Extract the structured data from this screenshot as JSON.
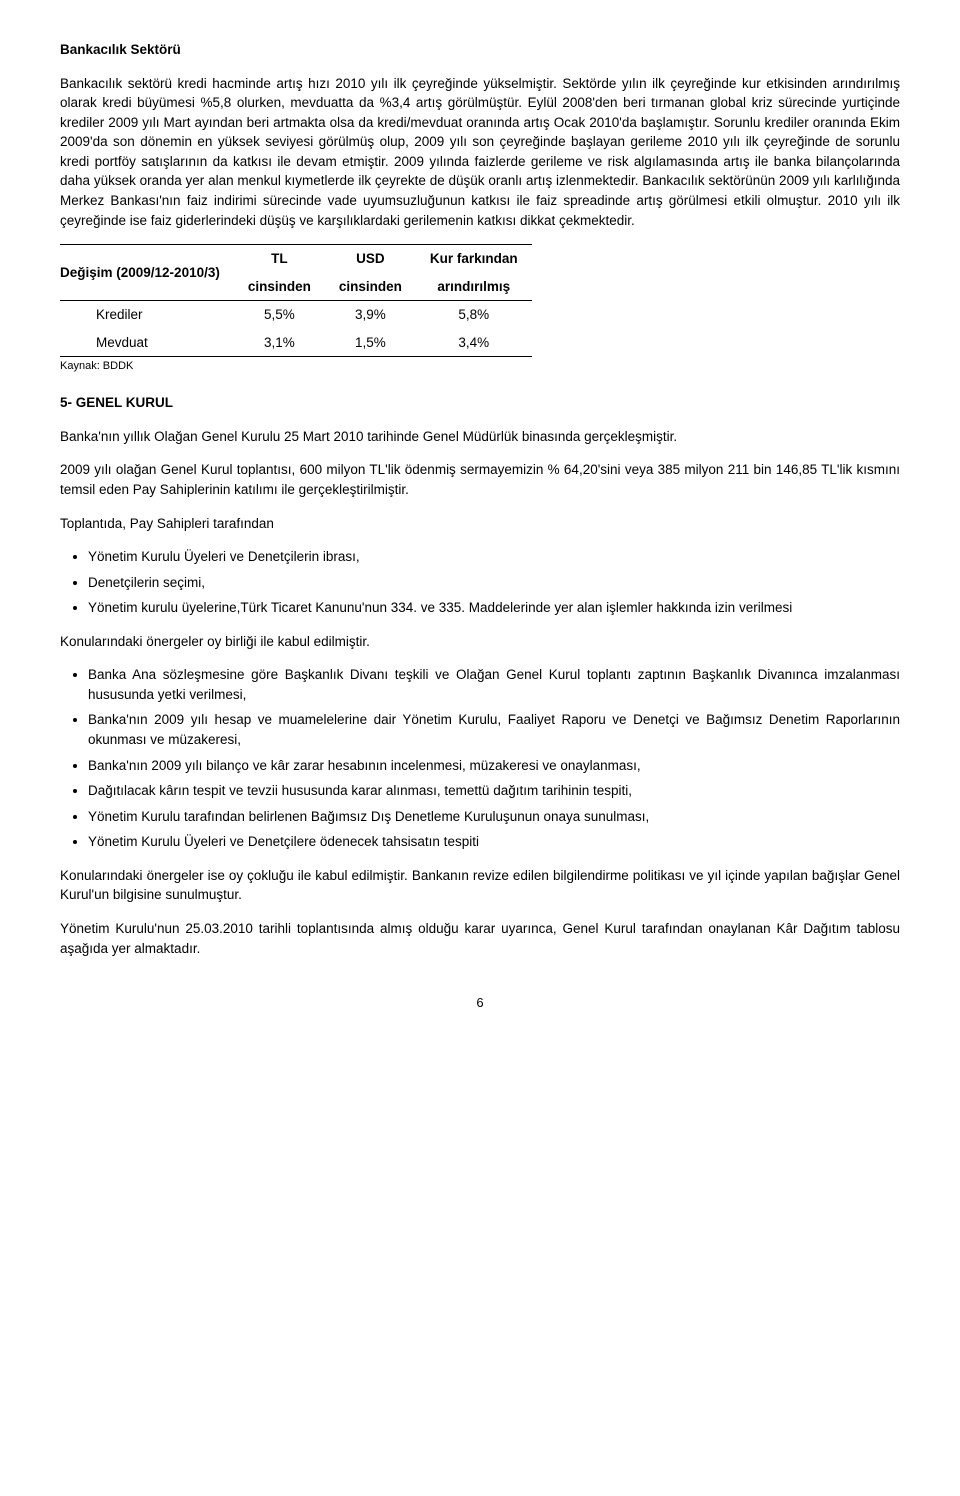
{
  "section1": {
    "title": "Bankacılık Sektörü",
    "p1": "Bankacılık sektörü kredi hacminde artış hızı 2010 yılı ilk çeyreğinde yükselmiştir. Sektörde yılın ilk çeyreğinde kur etkisinden arındırılmış olarak kredi büyümesi %5,8 olurken, mevduatta da %3,4 artış görülmüştür. Eylül 2008'den beri tırmanan global kriz sürecinde yurtiçinde krediler 2009 yılı Mart ayından beri artmakta olsa da kredi/mevduat oranında artış Ocak 2010'da başlamıştır. Sorunlu krediler oranında Ekim 2009'da son dönemin en yüksek seviyesi görülmüş olup, 2009 yılı son çeyreğinde başlayan gerileme 2010 yılı ilk çeyreğinde de sorunlu kredi portföy satışlarının da katkısı ile devam etmiştir. 2009 yılında faizlerde gerileme ve risk algılamasında artış ile banka bilançolarında daha yüksek oranda yer alan menkul kıymetlerde ilk çeyrekte de düşük oranlı artış izlenmektedir. Bankacılık sektörünün 2009 yılı karlılığında Merkez Bankası'nın faiz indirimi sürecinde vade uyumsuzluğunun katkısı ile faiz spreadinde artış görülmesi etkili olmuştur. 2010 yılı ilk çeyreğinde ise faiz giderlerindeki düşüş ve karşılıklardaki gerilemenin katkısı dikkat çekmektedir."
  },
  "table": {
    "header_label": "Değişim (2009/12-2010/3)",
    "col1_line1": "TL",
    "col1_line2": "cinsinden",
    "col2_line1": "USD",
    "col2_line2": "cinsinden",
    "col3_line1": "Kur farkından",
    "col3_line2": "arındırılmış",
    "rows": [
      {
        "label": "Krediler",
        "c1": "5,5%",
        "c2": "3,9%",
        "c3": "5,8%"
      },
      {
        "label": "Mevduat",
        "c1": "3,1%",
        "c2": "1,5%",
        "c3": "3,4%"
      }
    ],
    "source": "Kaynak: BDDK"
  },
  "section2": {
    "title": "5-  GENEL KURUL",
    "p1": "Banka'nın yıllık Olağan Genel Kurulu 25 Mart 2010 tarihinde Genel Müdürlük binasında gerçekleşmiştir.",
    "p2": "2009 yılı olağan Genel Kurul toplantısı, 600 milyon TL'lik ödenmiş sermayemizin % 64,20'sini veya 385 milyon 211 bin 146,85 TL'lik kısmını temsil eden Pay Sahiplerinin katılımı ile gerçekleştirilmiştir.",
    "p3": "Toplantıda, Pay Sahipleri tarafından",
    "list1": [
      "Yönetim Kurulu Üyeleri ve Denetçilerin ibrası,",
      "Denetçilerin seçimi,",
      "Yönetim kurulu üyelerine,Türk Ticaret Kanunu'nun 334. ve 335. Maddelerinde yer alan işlemler hakkında izin verilmesi"
    ],
    "p4": "Konularındaki önergeler oy birliği ile kabul edilmiştir.",
    "list2": [
      "Banka Ana sözleşmesine göre Başkanlık Divanı teşkili ve Olağan Genel Kurul toplantı zaptının Başkanlık Divanınca imzalanması hususunda yetki verilmesi,",
      "Banka'nın 2009 yılı hesap ve muamelelerine dair Yönetim Kurulu, Faaliyet Raporu ve Denetçi ve Bağımsız Denetim Raporlarının okunması ve müzakeresi,",
      "Banka'nın 2009 yılı bilanço ve kâr  zarar hesabının incelenmesi, müzakeresi ve onaylanması,",
      "Dağıtılacak kârın tespit ve tevzii hususunda karar alınması, temettü dağıtım tarihinin tespiti,",
      "Yönetim Kurulu tarafından belirlenen Bağımsız Dış Denetleme Kuruluşunun onaya sunulması,",
      "Yönetim Kurulu Üyeleri ve Denetçilere ödenecek tahsisatın tespiti"
    ],
    "p5": "Konularındaki önergeler ise oy çokluğu ile kabul edilmiştir. Bankanın revize edilen bilgilendirme politikası ve yıl içinde yapılan bağışlar Genel Kurul'un bilgisine sunulmuştur.",
    "p6": "Yönetim Kurulu'nun 25.03.2010 tarihli toplantısında almış olduğu karar uyarınca, Genel Kurul tarafından onaylanan Kâr Dağıtım tablosu aşağıda yer almaktadır."
  },
  "page_number": "6"
}
